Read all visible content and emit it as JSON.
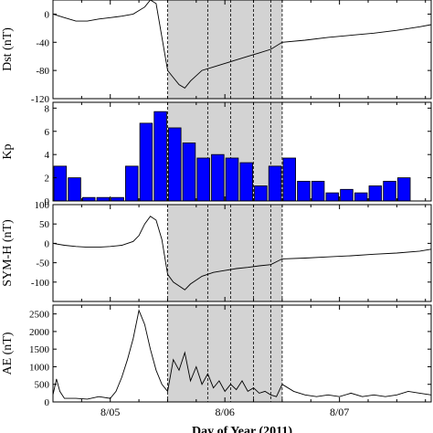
{
  "colors": {
    "shade": "#d3d3d3",
    "bar_fill": "#0000ff",
    "bar_edge": "#000000",
    "line": "#000000"
  },
  "chart_data": [
    {
      "type": "line",
      "ylabel": "Dst (nT)",
      "ylim": [
        -120,
        20
      ],
      "yticks": [
        -120,
        -80,
        -40,
        0
      ],
      "xlim": [
        216.0,
        219.3
      ],
      "shaded_interval": [
        217.0,
        218.0
      ],
      "dashed_lines": [
        217.35,
        217.55,
        217.75,
        217.9
      ],
      "x": [
        216.0,
        216.1,
        216.2,
        216.3,
        216.4,
        216.5,
        216.6,
        216.7,
        216.8,
        216.85,
        216.9,
        217.0,
        217.05,
        217.1,
        217.15,
        217.2,
        217.3,
        217.4,
        217.5,
        217.6,
        217.7,
        217.8,
        217.9,
        218.0,
        218.2,
        218.4,
        218.6,
        218.8,
        219.0,
        219.2,
        219.3
      ],
      "y": [
        0,
        -5,
        -10,
        -10,
        -7,
        -5,
        -3,
        0,
        10,
        20,
        15,
        -80,
        -90,
        -100,
        -105,
        -95,
        -80,
        -75,
        -70,
        -65,
        -60,
        -55,
        -50,
        -40,
        -37,
        -33,
        -30,
        -27,
        -23,
        -18,
        -15
      ]
    },
    {
      "type": "bar",
      "ylabel": "Kp",
      "ylim": [
        0,
        8.5
      ],
      "yticks": [
        0,
        2,
        4,
        6,
        8
      ],
      "xlim": [
        216.0,
        219.3
      ],
      "shaded_interval": [
        217.0,
        218.0
      ],
      "dashed_lines": [
        217.35,
        217.55,
        217.75,
        217.9
      ],
      "bar_width_days": 0.125,
      "x_start": 216.0,
      "values": [
        3.0,
        2.0,
        0.3,
        0.3,
        0.3,
        3.0,
        6.7,
        7.7,
        6.3,
        5.0,
        3.7,
        4.0,
        3.7,
        3.3,
        1.3,
        3.0,
        3.7,
        1.7,
        1.7,
        0.7,
        1.0,
        0.7,
        1.3,
        1.7,
        2.0
      ]
    },
    {
      "type": "line",
      "ylabel": "SYM-H (nT)",
      "ylim": [
        -150,
        100
      ],
      "yticks": [
        -100,
        -50,
        0,
        50,
        100
      ],
      "xlim": [
        216.0,
        219.3
      ],
      "shaded_interval": [
        217.0,
        218.0
      ],
      "dashed_lines": [
        217.35,
        217.55,
        217.75,
        217.9
      ],
      "x": [
        216.0,
        216.1,
        216.2,
        216.3,
        216.4,
        216.5,
        216.6,
        216.7,
        216.75,
        216.8,
        216.85,
        216.9,
        216.95,
        217.0,
        217.05,
        217.1,
        217.15,
        217.2,
        217.3,
        217.4,
        217.5,
        217.6,
        217.7,
        217.8,
        217.9,
        218.0,
        218.2,
        218.4,
        218.6,
        218.8,
        219.0,
        219.2,
        219.3
      ],
      "y": [
        0,
        -5,
        -8,
        -10,
        -10,
        -8,
        -5,
        5,
        20,
        50,
        70,
        60,
        10,
        -80,
        -100,
        -110,
        -120,
        -105,
        -85,
        -75,
        -70,
        -65,
        -62,
        -58,
        -55,
        -40,
        -38,
        -35,
        -32,
        -28,
        -25,
        -20,
        -15
      ]
    },
    {
      "type": "line",
      "ylabel": "AE (nT)",
      "ylim": [
        0,
        2750
      ],
      "yticks": [
        0,
        500,
        1000,
        1500,
        2000,
        2500
      ],
      "xlim": [
        216.0,
        219.3
      ],
      "shaded_interval": [
        217.0,
        218.0
      ],
      "dashed_lines": [
        217.35,
        217.55,
        217.75,
        217.9
      ],
      "xticks": [
        216.5,
        217.5,
        218.5
      ],
      "xticklabels": [
        "8/05",
        "8/06",
        "8/07"
      ],
      "xlabel": "Day of Year (2011)",
      "x": [
        216.0,
        216.03,
        216.06,
        216.1,
        216.2,
        216.3,
        216.4,
        216.5,
        216.55,
        216.6,
        216.65,
        216.7,
        216.75,
        216.8,
        216.85,
        216.9,
        216.95,
        217.0,
        217.05,
        217.1,
        217.15,
        217.2,
        217.25,
        217.3,
        217.35,
        217.4,
        217.45,
        217.5,
        217.55,
        217.6,
        217.65,
        217.7,
        217.75,
        217.8,
        217.85,
        217.9,
        217.95,
        218.0,
        218.1,
        218.2,
        218.3,
        218.4,
        218.5,
        218.6,
        218.7,
        218.8,
        218.9,
        219.0,
        219.1,
        219.2,
        219.3
      ],
      "y": [
        200,
        650,
        300,
        100,
        100,
        80,
        150,
        100,
        300,
        700,
        1200,
        1800,
        2600,
        2200,
        1500,
        900,
        500,
        300,
        1200,
        900,
        1400,
        600,
        1000,
        500,
        800,
        400,
        600,
        300,
        500,
        350,
        600,
        300,
        400,
        250,
        300,
        200,
        150,
        500,
        300,
        200,
        150,
        200,
        150,
        250,
        150,
        200,
        150,
        200,
        300,
        250,
        200
      ]
    }
  ]
}
